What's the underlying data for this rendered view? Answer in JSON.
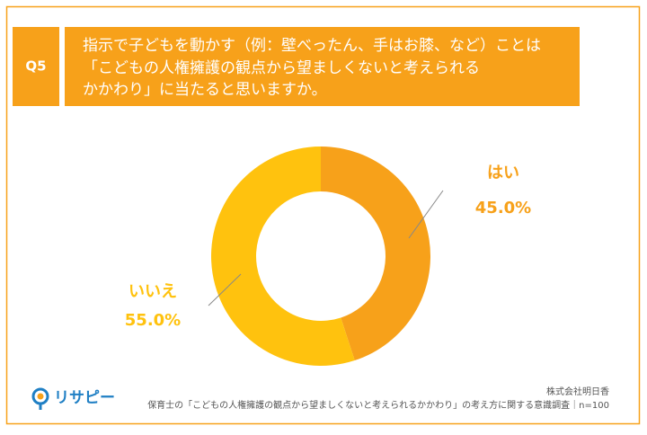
{
  "question_number": "Q5",
  "chart_data": {
    "type": "pie",
    "title": [
      "指示で子どもを動かす（例：壁べったん、手はお膝、など）ことは",
      "「こどもの人権擁護の観点から望ましくないと考えられる",
      "かかわり」に当たると思いますか。"
    ],
    "categories": [
      "はい",
      "いいえ"
    ],
    "values": [
      45,
      55
    ],
    "value_labels": [
      "45.0%",
      "55.0%"
    ],
    "colors": [
      "#F7A11A",
      "#FFC20E"
    ],
    "donut": true
  },
  "footer": {
    "logo": "リサピー",
    "source": "株式会社明日香",
    "note": "保育士の「こどもの人権擁護の観点から望ましくないと考えられるかかわり」の考え方に関する意識調査｜n=100"
  }
}
